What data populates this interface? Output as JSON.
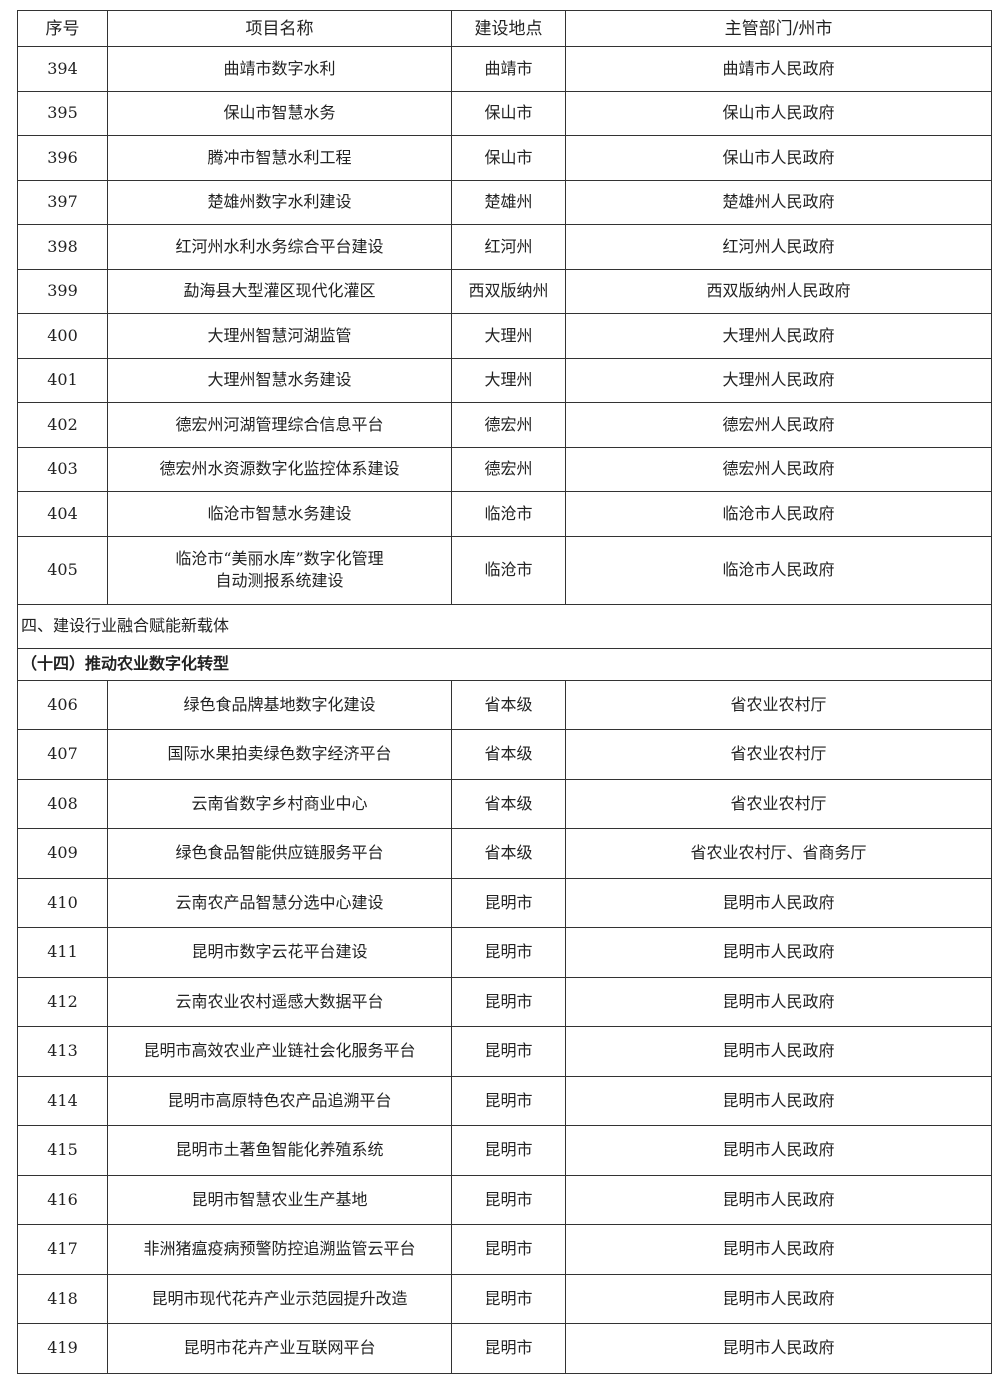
{
  "headers": [
    "序号",
    "项目名称",
    "建设地点",
    "主管部门/州市"
  ],
  "rows_a": [
    [
      "394",
      "曲靖市数字水利",
      "曲靖市",
      "曲靖市人民政府"
    ],
    [
      "395",
      "保山市智慧水务",
      "保山市",
      "保山市人民政府"
    ],
    [
      "396",
      "腾冲市智慧水利工程",
      "保山市",
      "保山市人民政府"
    ],
    [
      "397",
      "楚雄州数字水利建设",
      "楚雄州",
      "楚雄州人民政府"
    ],
    [
      "398",
      "红河州水利水务综合平台建设",
      "红河州",
      "红河州人民政府"
    ],
    [
      "399",
      "勐海县大型灌区现代化灌区",
      "西双版纳州",
      "西双版纳州人民政府"
    ],
    [
      "400",
      "大理州智慧河湖监管",
      "大理州",
      "大理州人民政府"
    ],
    [
      "401",
      "大理州智慧水务建设",
      "大理州",
      "大理州人民政府"
    ],
    [
      "402",
      "德宏州河湖管理综合信息平台",
      "德宏州",
      "德宏州人民政府"
    ],
    [
      "403",
      "德宏州水资源数字化监控体系建设",
      "德宏州",
      "德宏州人民政府"
    ],
    [
      "404",
      "临沧市智慧水务建设",
      "临沧市",
      "临沧市人民政府"
    ]
  ],
  "row_405": {
    "no": "405",
    "name_line1": "临沧市“美丽水库”数字化管理",
    "name_line2": "自动测报系统建设",
    "place": "临沧市",
    "dept": "临沧市人民政府"
  },
  "section": "四、建设行业融合赋能新载体",
  "subsection": "（十四）推动农业数字化转型",
  "rows_b": [
    [
      "406",
      "绿色食品牌基地数字化建设",
      "省本级",
      "省农业农村厅"
    ],
    [
      "407",
      "国际水果拍卖绿色数字经济平台",
      "省本级",
      "省农业农村厅"
    ],
    [
      "408",
      "云南省数字乡村商业中心",
      "省本级",
      "省农业农村厅"
    ],
    [
      "409",
      "绿色食品智能供应链服务平台",
      "省本级",
      "省农业农村厅、省商务厅"
    ],
    [
      "410",
      "云南农产品智慧分选中心建设",
      "昆明市",
      "昆明市人民政府"
    ],
    [
      "411",
      "昆明市数字云花平台建设",
      "昆明市",
      "昆明市人民政府"
    ],
    [
      "412",
      "云南农业农村遥感大数据平台",
      "昆明市",
      "昆明市人民政府"
    ],
    [
      "413",
      "昆明市高效农业产业链社会化服务平台",
      "昆明市",
      "昆明市人民政府"
    ],
    [
      "414",
      "昆明市高原特色农产品追溯平台",
      "昆明市",
      "昆明市人民政府"
    ],
    [
      "415",
      "昆明市土著鱼智能化养殖系统",
      "昆明市",
      "昆明市人民政府"
    ],
    [
      "416",
      "昆明市智慧农业生产基地",
      "昆明市",
      "昆明市人民政府"
    ],
    [
      "417",
      "非洲猪瘟疫病预警防控追溯监管云平台",
      "昆明市",
      "昆明市人民政府"
    ],
    [
      "418",
      "昆明市现代花卉产业示范园提升改造",
      "昆明市",
      "昆明市人民政府"
    ],
    [
      "419",
      "昆明市花卉产业互联网平台",
      "昆明市",
      "昆明市人民政府"
    ]
  ]
}
